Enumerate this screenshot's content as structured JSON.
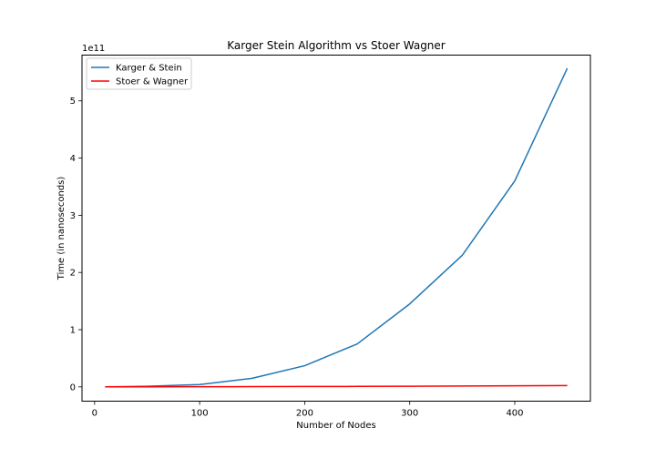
{
  "chart_data": {
    "type": "line",
    "title": "Karger Stein Algorithm vs Stoer Wagner",
    "xlabel": "Number of Nodes",
    "ylabel": "Time (in nanoseconds)",
    "y_offset_label": "1e11",
    "y_scale_exponent": 11,
    "xlim": [
      -12,
      472
    ],
    "ylim": [
      -0.25,
      5.8
    ],
    "x_ticks": [
      0,
      100,
      200,
      300,
      400
    ],
    "y_ticks": [
      0,
      1,
      2,
      3,
      4,
      5
    ],
    "legend_position": "upper-left",
    "grid": false,
    "series": [
      {
        "name": "Karger & Stein",
        "color": "#1f77b4",
        "x": [
          10,
          50,
          100,
          150,
          200,
          250,
          300,
          350,
          400,
          450
        ],
        "y": [
          0.0,
          0.01,
          0.04,
          0.15,
          0.37,
          0.75,
          1.45,
          2.3,
          3.6,
          5.57
        ]
      },
      {
        "name": "Stoer & Wagner",
        "color": "#ff0000",
        "x": [
          10,
          50,
          100,
          150,
          200,
          250,
          300,
          350,
          400,
          450
        ],
        "y": [
          0.0,
          0.001,
          0.002,
          0.004,
          0.006,
          0.008,
          0.011,
          0.014,
          0.018,
          0.022
        ]
      }
    ]
  }
}
